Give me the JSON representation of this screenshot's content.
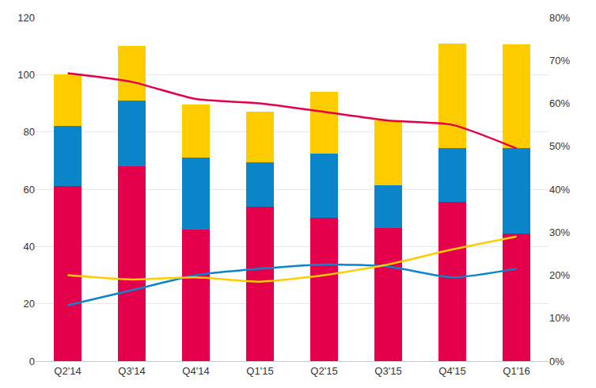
{
  "chart_data": {
    "type": "bar",
    "stacked": true,
    "grid": true,
    "categories": [
      "Q2'14",
      "Q3'14",
      "Q4'14",
      "Q1'15",
      "Q2'15",
      "Q3'15",
      "Q4'15",
      "Q1'16"
    ],
    "ylim": [
      0,
      120
    ],
    "yticks": [
      0,
      20,
      40,
      60,
      80,
      100,
      120
    ],
    "y2lim": [
      0,
      80
    ],
    "y2ticks": [
      {
        "value": 0,
        "label": "0%"
      },
      {
        "value": 10,
        "label": "10%"
      },
      {
        "value": 20,
        "label": "20%"
      },
      {
        "value": 30,
        "label": "30%"
      },
      {
        "value": 40,
        "label": "40%"
      },
      {
        "value": 50,
        "label": "50%"
      },
      {
        "value": 60,
        "label": "60%"
      },
      {
        "value": 70,
        "label": "70%"
      },
      {
        "value": 80,
        "label": "80%"
      }
    ],
    "series": [
      {
        "type": "bar",
        "color": "#e4004b",
        "values": [
          61,
          68,
          46,
          54,
          50,
          46.5,
          55.5,
          44.5
        ]
      },
      {
        "type": "bar",
        "color": "#0a85c9",
        "values": [
          21,
          23,
          25,
          15.5,
          22.5,
          15,
          19,
          30
        ]
      },
      {
        "type": "bar",
        "color": "#ffcc00",
        "values": [
          18,
          19,
          18.5,
          17.5,
          21.5,
          22.5,
          36.5,
          36
        ]
      },
      {
        "type": "line",
        "axis": "y2",
        "color": "#e4004b",
        "values": [
          67,
          65,
          61,
          60,
          58,
          56,
          55,
          49.5
        ]
      },
      {
        "type": "line",
        "axis": "y2",
        "color": "#0a85c9",
        "values": [
          13,
          16.5,
          20,
          21.5,
          22.5,
          22,
          19.5,
          21.5
        ]
      },
      {
        "type": "line",
        "axis": "y2",
        "color": "#ffcc00",
        "values": [
          20,
          19,
          19.5,
          18.5,
          20,
          22.5,
          26,
          29
        ]
      }
    ]
  }
}
